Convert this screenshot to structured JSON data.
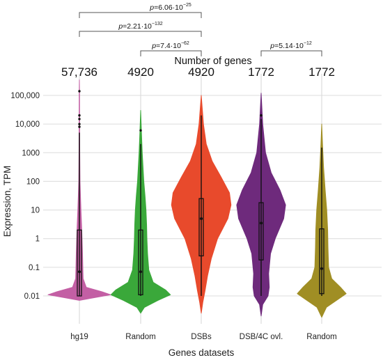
{
  "chart_data": {
    "type": "violin",
    "xlabel": "Genes datasets",
    "ylabel": "Expression, TPM",
    "yscale": "log",
    "ylim": [
      0.003,
      600000
    ],
    "yticks": [
      {
        "value": 100000,
        "label": "100,000"
      },
      {
        "value": 10000,
        "label": "10,000"
      },
      {
        "value": 1000,
        "label": "1000"
      },
      {
        "value": 100,
        "label": "100"
      },
      {
        "value": 10,
        "label": "10"
      },
      {
        "value": 1,
        "label": "1"
      },
      {
        "value": 0.1,
        "label": "0.1"
      },
      {
        "value": 0.01,
        "label": "0.01"
      }
    ],
    "counts_title": "Number of genes",
    "categories": [
      {
        "label": "hg19",
        "count": "57,736",
        "color": "#c35fa4",
        "min": 0.01,
        "q1": 0.01,
        "median": 0.07,
        "q3": 2,
        "whisker_high": 5000,
        "max": 350000,
        "outliers": [
          140000,
          20000,
          15000,
          10000,
          8000
        ],
        "density": [
          [
            0.007,
            0.0
          ],
          [
            0.009,
            0.55
          ],
          [
            0.011,
            1.0
          ],
          [
            0.014,
            0.72
          ],
          [
            0.02,
            0.22
          ],
          [
            0.04,
            0.12
          ],
          [
            0.1,
            0.11
          ],
          [
            0.3,
            0.1
          ],
          [
            1,
            0.085
          ],
          [
            3,
            0.07
          ],
          [
            10,
            0.05
          ],
          [
            30,
            0.035
          ],
          [
            100,
            0.02
          ],
          [
            1000,
            0.012
          ],
          [
            10000,
            0.008
          ],
          [
            100000,
            0.006
          ],
          [
            350000,
            0.0
          ]
        ]
      },
      {
        "label": "Random",
        "count": "4920",
        "color": "#3aa83a",
        "min": 0.01,
        "q1": 0.011,
        "median": 0.07,
        "q3": 2,
        "whisker_high": 2000,
        "max": 30000,
        "outliers": [
          6000
        ],
        "density": [
          [
            0.0025,
            0.0
          ],
          [
            0.004,
            0.12
          ],
          [
            0.007,
            0.55
          ],
          [
            0.011,
            0.95
          ],
          [
            0.016,
            0.8
          ],
          [
            0.03,
            0.4
          ],
          [
            0.08,
            0.26
          ],
          [
            0.3,
            0.22
          ],
          [
            1,
            0.2
          ],
          [
            3,
            0.19
          ],
          [
            10,
            0.17
          ],
          [
            30,
            0.14
          ],
          [
            100,
            0.1
          ],
          [
            1000,
            0.05
          ],
          [
            5000,
            0.025
          ],
          [
            30000,
            0.0
          ]
        ]
      },
      {
        "label": "DSBs",
        "count": "4920",
        "color": "#e84a2c",
        "min": 0.01,
        "q1": 0.25,
        "median": 5,
        "q3": 25,
        "whisker_high": 20000,
        "max": 100000,
        "outliers": [],
        "density": [
          [
            0.0025,
            0.0
          ],
          [
            0.006,
            0.05
          ],
          [
            0.015,
            0.12
          ],
          [
            0.05,
            0.2
          ],
          [
            0.2,
            0.32
          ],
          [
            1,
            0.52
          ],
          [
            5,
            0.85
          ],
          [
            15,
            0.95
          ],
          [
            40,
            0.9
          ],
          [
            150,
            0.62
          ],
          [
            500,
            0.35
          ],
          [
            2000,
            0.16
          ],
          [
            10000,
            0.07
          ],
          [
            100000,
            0.0
          ]
        ]
      },
      {
        "label": "DSB/4C ovl.",
        "count": "1772",
        "color": "#6e2a7c",
        "min": 0.01,
        "q1": 0.18,
        "median": 3.5,
        "q3": 18,
        "whisker_high": 15000,
        "max": 120000,
        "outliers": [
          20000
        ],
        "density": [
          [
            0.002,
            0.0
          ],
          [
            0.005,
            0.05
          ],
          [
            0.01,
            0.22
          ],
          [
            0.02,
            0.26
          ],
          [
            0.06,
            0.24
          ],
          [
            0.3,
            0.3
          ],
          [
            1,
            0.45
          ],
          [
            5,
            0.72
          ],
          [
            15,
            0.78
          ],
          [
            50,
            0.6
          ],
          [
            200,
            0.32
          ],
          [
            1000,
            0.14
          ],
          [
            10000,
            0.05
          ],
          [
            120000,
            0.0
          ]
        ]
      },
      {
        "label": "Random",
        "count": "1772",
        "color": "#a08e24",
        "min": 0.01,
        "q1": 0.012,
        "median": 0.09,
        "q3": 2.2,
        "whisker_high": 1500,
        "max": 10000,
        "outliers": [],
        "density": [
          [
            0.0018,
            0.0
          ],
          [
            0.004,
            0.15
          ],
          [
            0.008,
            0.55
          ],
          [
            0.012,
            0.78
          ],
          [
            0.02,
            0.6
          ],
          [
            0.04,
            0.32
          ],
          [
            0.1,
            0.22
          ],
          [
            0.5,
            0.2
          ],
          [
            2,
            0.19
          ],
          [
            10,
            0.16
          ],
          [
            50,
            0.11
          ],
          [
            300,
            0.06
          ],
          [
            2000,
            0.025
          ],
          [
            10000,
            0.0
          ]
        ]
      }
    ],
    "comparisons": [
      {
        "from": 0,
        "to": 2,
        "p_base": "6.06·10",
        "p_exp": "−25"
      },
      {
        "from": 0,
        "to": 2,
        "p_base": "2.21·10",
        "p_exp": "−132"
      },
      {
        "from": 1,
        "to": 2,
        "p_base": "7.4·10",
        "p_exp": "−62"
      },
      {
        "from": 3,
        "to": 4,
        "p_base": "5.14·10",
        "p_exp": "−12"
      }
    ]
  }
}
